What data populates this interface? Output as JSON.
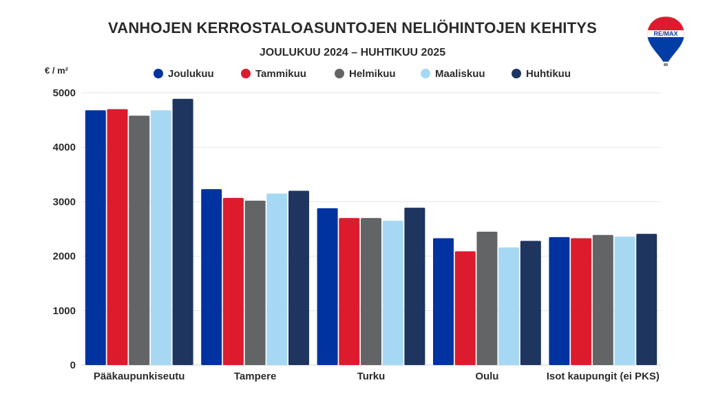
{
  "title": "VANHOJEN KERROSTALOASUNTOJEN NELIÖHINTOJEN KEHITYS",
  "subtitle": "JOULUKUU 2024 – HUHTIKUU 2025",
  "logo": {
    "text": "RE/MAX",
    "colors": [
      "#dc1c2e",
      "#ffffff",
      "#003da5"
    ]
  },
  "chart_data": {
    "type": "bar",
    "ylabel": "€ / m²",
    "ylim": [
      0,
      5000
    ],
    "yticks": [
      0,
      1000,
      2000,
      3000,
      4000,
      5000
    ],
    "grid": true,
    "legend_position": "top",
    "categories": [
      "Pääkaupunkiseutu",
      "Tampere",
      "Turku",
      "Oulu",
      "Isot kaupungit (ei PKS)"
    ],
    "series": [
      {
        "name": "Joulukuu",
        "color": "#0033a0",
        "values": [
          4680,
          3230,
          2880,
          2330,
          2350
        ]
      },
      {
        "name": "Tammikuu",
        "color": "#dc1c2e",
        "values": [
          4700,
          3070,
          2700,
          2090,
          2330
        ]
      },
      {
        "name": "Helmikuu",
        "color": "#636466",
        "values": [
          4580,
          3020,
          2700,
          2450,
          2390
        ]
      },
      {
        "name": "Maaliskuu",
        "color": "#a6d8f4",
        "values": [
          4680,
          3150,
          2650,
          2160,
          2360
        ]
      },
      {
        "name": "Huhtikuu",
        "color": "#1e3560",
        "values": [
          4890,
          3200,
          2890,
          2280,
          2410
        ]
      }
    ]
  }
}
